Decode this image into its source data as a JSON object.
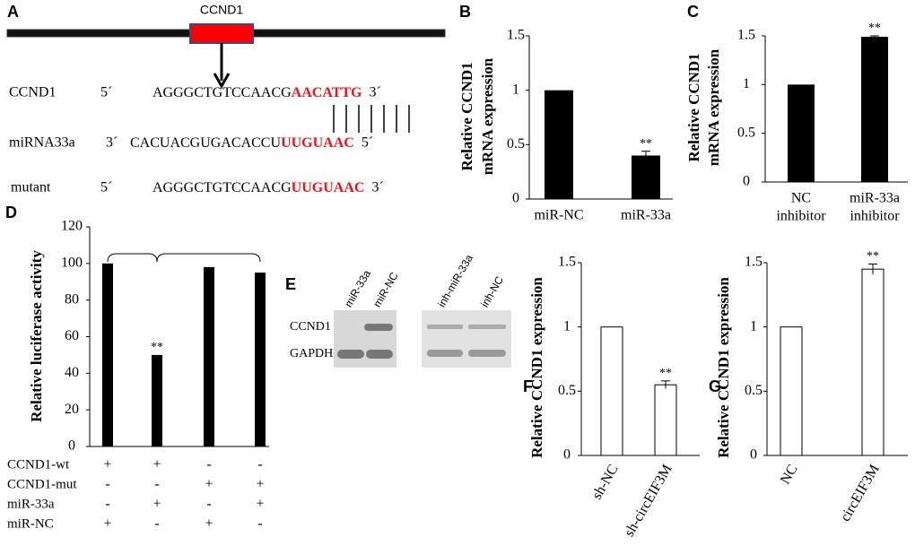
{
  "panel_a": {
    "label": "A",
    "gene": "CCND1",
    "rows": [
      {
        "name": "CCND1",
        "left": "5´",
        "seq_black": "AGGGCTGTCCAACG",
        "seq_red": "AACATTG",
        "right": "3´"
      },
      {
        "name": "miRNA33a",
        "left": "3´",
        "seq_black": "CACUACGUGACACCU",
        "seq_red": "UUGUAAC",
        "right": "5´"
      },
      {
        "name": "mutant",
        "left": "5´",
        "seq_black": "AGGGCTGTCCAACG",
        "seq_red": "UUGUAAC",
        "right": "3´"
      }
    ]
  },
  "panel_e": {
    "label": "E",
    "lanes": [
      "miR-33a",
      "miR-NC",
      "inh-miR-33a",
      "inh-NC"
    ],
    "proteins": [
      "CCND1",
      "GAPDH"
    ]
  },
  "chart_data": [
    {
      "type": "bar",
      "label": "B",
      "ylabel": [
        "Relative CCND1",
        "mRNA expression"
      ],
      "categories": [
        "miR-NC",
        "miR-33a"
      ],
      "values": [
        1,
        0.4
      ],
      "errors": [
        null,
        0.04
      ],
      "annotations": [
        null,
        "**"
      ],
      "color": "#000000",
      "ylim": [
        0,
        1.5
      ],
      "yticks": [
        0,
        0.5,
        1,
        1.5
      ]
    },
    {
      "type": "bar",
      "label": "C",
      "ylabel": [
        "Relative CCND1",
        "mRNA expression"
      ],
      "categories": [
        [
          "NC",
          "inhibitor"
        ],
        [
          "miR-33a",
          "inhibitor"
        ]
      ],
      "values": [
        1,
        1.49
      ],
      "errors": [
        null,
        0.01
      ],
      "annotations": [
        null,
        "**"
      ],
      "color": "#000000",
      "ylim": [
        0,
        1.5
      ],
      "yticks": [
        0,
        0.5,
        1,
        1.5
      ]
    },
    {
      "type": "bar",
      "label": "D",
      "ylabel": [
        "Relative luciferase activity"
      ],
      "values": [
        100,
        50,
        98,
        95
      ],
      "annotations": [
        null,
        "**",
        null,
        null
      ],
      "color": "#000000",
      "ylim": [
        0,
        120
      ],
      "yticks": [
        0,
        20,
        40,
        60,
        80,
        100,
        120
      ],
      "conditions": [
        {
          "name": "CCND1-wt",
          "marks": [
            "+",
            "+",
            "-",
            "-"
          ]
        },
        {
          "name": "CCND1-mut",
          "marks": [
            "-",
            "-",
            "+",
            "+"
          ]
        },
        {
          "name": "miR-33a",
          "marks": [
            "-",
            "+",
            "-",
            "+"
          ]
        },
        {
          "name": "miR-NC",
          "marks": [
            "+",
            "-",
            "+",
            "-"
          ]
        }
      ]
    },
    {
      "type": "bar",
      "label": "F",
      "ylabel": [
        "Relative CCND1 expression"
      ],
      "categories": [
        "sh-NC",
        "sh-circEIF3M"
      ],
      "values": [
        1,
        0.55
      ],
      "errors": [
        null,
        0.03
      ],
      "annotations": [
        null,
        "**"
      ],
      "color": "#ffffff",
      "edgecolor": "#000000",
      "ylim": [
        0,
        1.5
      ],
      "yticks": [
        0,
        0.5,
        1,
        1.5
      ]
    },
    {
      "type": "bar",
      "label": "G",
      "ylabel": [
        "Relative CCND1 expression"
      ],
      "categories": [
        "NC",
        "circEIF3M"
      ],
      "values": [
        1,
        1.45
      ],
      "errors": [
        null,
        0.04
      ],
      "annotations": [
        null,
        "**"
      ],
      "color": "#ffffff",
      "edgecolor": "#000000",
      "ylim": [
        0,
        1.5
      ],
      "yticks": [
        0,
        0.5,
        1,
        1.5
      ]
    }
  ]
}
